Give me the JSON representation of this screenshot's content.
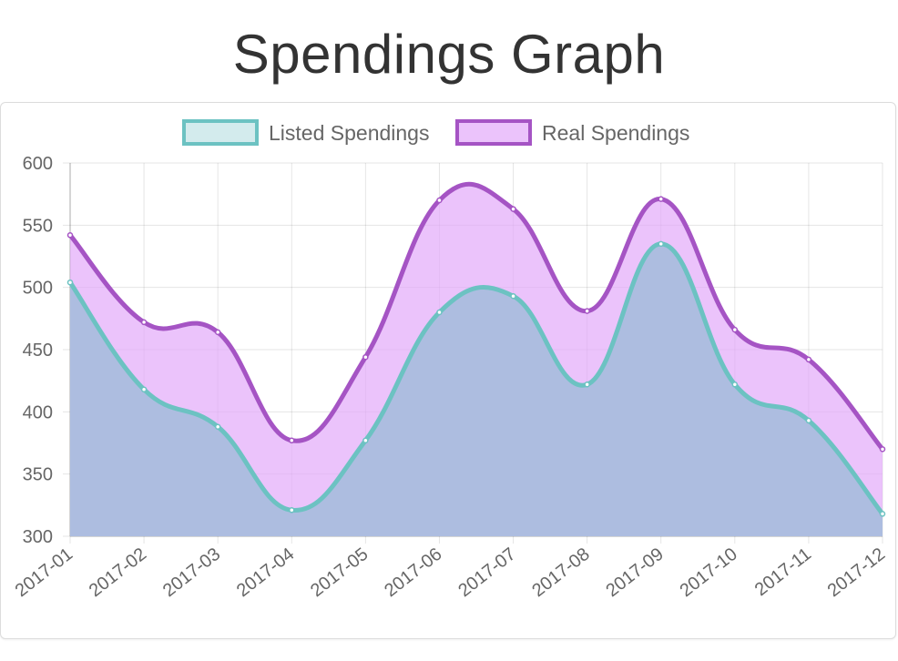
{
  "page": {
    "title": "Spendings Graph"
  },
  "chart_data": {
    "type": "area",
    "categories": [
      "2017-01",
      "2017-02",
      "2017-03",
      "2017-04",
      "2017-05",
      "2017-06",
      "2017-07",
      "2017-08",
      "2017-09",
      "2017-10",
      "2017-11",
      "2017-12"
    ],
    "series": [
      {
        "name": "Listed Spendings",
        "values": [
          504,
          418,
          388,
          321,
          377,
          480,
          493,
          422,
          535,
          422,
          393,
          318
        ],
        "stroke": "#6cc2c2",
        "fill": "rgba(200,230,232,0.8)"
      },
      {
        "name": "Real Spendings",
        "values": [
          542,
          472,
          464,
          377,
          444,
          570,
          563,
          481,
          571,
          466,
          442,
          370
        ],
        "stroke": "#a554c4",
        "fill": "rgba(226,170,250,0.7)"
      }
    ],
    "overlap_fill": "#adbde0",
    "yticks": [
      300,
      350,
      400,
      450,
      500,
      550,
      600
    ],
    "ylim": [
      300,
      600
    ],
    "grid": true,
    "legend_position": "top-center"
  }
}
